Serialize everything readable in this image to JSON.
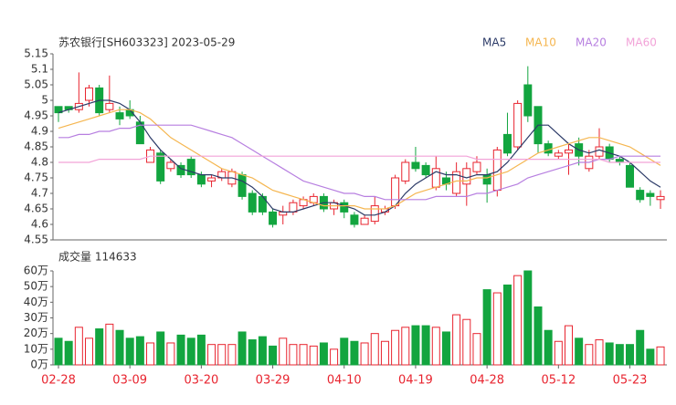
{
  "chart_data": [
    {
      "type": "candlestick",
      "title": "苏农银行[SH603323] 2023-05-29",
      "up_color": "#e8242f",
      "down_color": "#12a53f",
      "open": [
        4.98,
        4.98,
        4.97,
        5.0,
        5.04,
        4.97,
        4.96,
        4.97,
        4.93,
        4.8,
        4.83,
        4.78,
        4.79,
        4.81,
        4.76,
        4.74,
        4.75,
        4.73,
        4.76,
        4.7,
        4.69,
        4.64,
        4.63,
        4.64,
        4.66,
        4.67,
        4.69,
        4.65,
        4.67,
        4.63,
        4.6,
        4.61,
        4.64,
        4.66,
        4.74,
        4.8,
        4.79,
        4.72,
        4.75,
        4.7,
        4.73,
        4.77,
        4.76,
        4.71,
        4.89,
        4.85,
        5.05,
        4.98,
        4.86,
        4.82,
        4.83,
        4.86,
        4.78,
        4.82,
        4.85,
        4.81,
        4.79,
        4.71,
        4.7,
        4.68
      ],
      "high": [
        4.98,
        4.98,
        5.09,
        5.05,
        5.05,
        5.08,
        4.98,
        5.0,
        4.95,
        4.85,
        4.84,
        4.81,
        4.8,
        4.82,
        4.77,
        4.76,
        4.78,
        4.78,
        4.77,
        4.71,
        4.7,
        4.65,
        4.66,
        4.68,
        4.69,
        4.7,
        4.7,
        4.68,
        4.68,
        4.64,
        4.63,
        4.69,
        4.66,
        4.76,
        4.81,
        4.85,
        4.8,
        4.82,
        4.77,
        4.8,
        4.8,
        4.82,
        4.78,
        4.85,
        4.96,
        5.0,
        5.11,
        4.98,
        4.87,
        4.84,
        4.86,
        4.88,
        4.84,
        4.91,
        4.86,
        4.82,
        4.8,
        4.72,
        4.71,
        4.71
      ],
      "low": [
        4.93,
        4.96,
        4.96,
        4.98,
        4.95,
        4.96,
        4.92,
        4.94,
        4.86,
        4.8,
        4.73,
        4.77,
        4.75,
        4.75,
        4.72,
        4.72,
        4.74,
        4.72,
        4.68,
        4.63,
        4.63,
        4.59,
        4.6,
        4.63,
        4.65,
        4.66,
        4.64,
        4.63,
        4.62,
        4.59,
        4.6,
        4.6,
        4.63,
        4.65,
        4.73,
        4.77,
        4.75,
        4.71,
        4.71,
        4.69,
        4.66,
        4.76,
        4.67,
        4.69,
        4.82,
        4.84,
        4.93,
        4.83,
        4.82,
        4.81,
        4.76,
        4.79,
        4.77,
        4.81,
        4.8,
        4.79,
        4.72,
        4.67,
        4.66,
        4.65
      ],
      "close": [
        4.96,
        4.97,
        4.99,
        5.04,
        4.96,
        4.99,
        4.94,
        4.95,
        4.86,
        4.84,
        4.74,
        4.8,
        4.76,
        4.76,
        4.73,
        4.75,
        4.77,
        4.77,
        4.69,
        4.64,
        4.64,
        4.6,
        4.64,
        4.67,
        4.68,
        4.69,
        4.65,
        4.67,
        4.64,
        4.6,
        4.62,
        4.66,
        4.65,
        4.75,
        4.8,
        4.78,
        4.76,
        4.78,
        4.73,
        4.77,
        4.78,
        4.8,
        4.73,
        4.84,
        4.83,
        4.99,
        4.95,
        4.86,
        4.83,
        4.83,
        4.84,
        4.82,
        4.82,
        4.85,
        4.81,
        4.8,
        4.72,
        4.68,
        4.69,
        4.69
      ],
      "series": [
        {
          "name": "MA5",
          "color": "#2b3a67",
          "values": [
            4.96,
            4.97,
            4.98,
            4.99,
            5.0,
            5.0,
            4.99,
            4.97,
            4.93,
            4.88,
            4.84,
            4.81,
            4.78,
            4.77,
            4.76,
            4.76,
            4.75,
            4.75,
            4.74,
            4.72,
            4.69,
            4.65,
            4.64,
            4.64,
            4.65,
            4.66,
            4.67,
            4.67,
            4.66,
            4.65,
            4.63,
            4.63,
            4.64,
            4.66,
            4.7,
            4.73,
            4.75,
            4.77,
            4.76,
            4.76,
            4.75,
            4.76,
            4.76,
            4.77,
            4.8,
            4.84,
            4.88,
            4.92,
            4.92,
            4.89,
            4.86,
            4.84,
            4.83,
            4.84,
            4.83,
            4.82,
            4.8,
            4.77,
            4.74,
            4.72
          ]
        },
        {
          "name": "MA10",
          "color": "#f5b650",
          "values": [
            4.91,
            4.92,
            4.93,
            4.94,
            4.95,
            4.96,
            4.97,
            4.97,
            4.96,
            4.94,
            4.91,
            4.88,
            4.86,
            4.84,
            4.82,
            4.8,
            4.78,
            4.77,
            4.76,
            4.75,
            4.73,
            4.71,
            4.7,
            4.69,
            4.68,
            4.67,
            4.66,
            4.66,
            4.66,
            4.66,
            4.65,
            4.65,
            4.65,
            4.66,
            4.68,
            4.7,
            4.71,
            4.72,
            4.73,
            4.74,
            4.74,
            4.75,
            4.75,
            4.76,
            4.77,
            4.79,
            4.81,
            4.83,
            4.84,
            4.85,
            4.86,
            4.87,
            4.88,
            4.88,
            4.87,
            4.86,
            4.85,
            4.83,
            4.81,
            4.79
          ]
        },
        {
          "name": "MA20",
          "color": "#b77fe0",
          "values": [
            4.88,
            4.88,
            4.89,
            4.89,
            4.9,
            4.9,
            4.91,
            4.91,
            4.92,
            4.92,
            4.92,
            4.92,
            4.92,
            4.92,
            4.91,
            4.9,
            4.89,
            4.88,
            4.86,
            4.84,
            4.82,
            4.8,
            4.78,
            4.76,
            4.74,
            4.73,
            4.72,
            4.71,
            4.7,
            4.7,
            4.69,
            4.69,
            4.68,
            4.68,
            4.68,
            4.68,
            4.68,
            4.69,
            4.69,
            4.69,
            4.69,
            4.7,
            4.7,
            4.71,
            4.72,
            4.73,
            4.75,
            4.76,
            4.77,
            4.78,
            4.79,
            4.8,
            4.8,
            4.81,
            4.81,
            4.82,
            4.82,
            4.82,
            4.82,
            4.82
          ]
        },
        {
          "name": "MA60",
          "color": "#f2a3d8",
          "values": [
            4.8,
            4.8,
            4.8,
            4.8,
            4.81,
            4.81,
            4.81,
            4.81,
            4.81,
            4.82,
            4.82,
            4.82,
            4.82,
            4.82,
            4.82,
            4.82,
            4.82,
            4.82,
            4.82,
            4.82,
            4.82,
            4.82,
            4.82,
            4.82,
            4.82,
            4.82,
            4.82,
            4.82,
            4.82,
            4.82,
            4.82,
            4.82,
            4.82,
            4.82,
            4.82,
            4.82,
            4.82,
            4.82,
            4.82,
            4.82,
            4.82,
            4.81,
            4.81,
            4.81,
            4.81,
            4.81,
            4.81,
            4.81,
            4.81,
            4.81,
            4.81,
            4.81,
            4.81,
            4.81,
            4.8,
            4.8,
            4.8,
            4.8,
            4.8,
            4.8
          ]
        }
      ],
      "ylim": [
        4.55,
        5.15
      ],
      "yticks": [
        4.55,
        4.6,
        4.65,
        4.7,
        4.75,
        4.8,
        4.85,
        4.9,
        4.95,
        5,
        5.05,
        5.1,
        5.15
      ]
    },
    {
      "type": "bar",
      "title": "成交量 114633",
      "categories": [
        "02-28",
        null,
        null,
        null,
        null,
        null,
        null,
        "03-09",
        null,
        null,
        null,
        null,
        null,
        null,
        "03-20",
        null,
        null,
        null,
        null,
        null,
        null,
        "03-29",
        null,
        null,
        null,
        null,
        null,
        null,
        "04-10",
        null,
        null,
        null,
        null,
        null,
        null,
        "04-19",
        null,
        null,
        null,
        null,
        null,
        null,
        "04-28",
        null,
        null,
        null,
        null,
        null,
        null,
        "05-12",
        null,
        null,
        null,
        null,
        null,
        null,
        "05-23",
        null,
        null,
        null
      ],
      "values": [
        17,
        15,
        24,
        17,
        23,
        26,
        22,
        17,
        18,
        14,
        21,
        14,
        19,
        17,
        19,
        13,
        13,
        13,
        21,
        16,
        18,
        12,
        17,
        13,
        13,
        12,
        14,
        10,
        17,
        15,
        14,
        20,
        15,
        22,
        24,
        25,
        25,
        24,
        21,
        32,
        29,
        20,
        48,
        46,
        51,
        57,
        60,
        37,
        22,
        15,
        25,
        17,
        13,
        16,
        14,
        13,
        13,
        22,
        10,
        11.46
      ],
      "ylim": [
        0,
        60
      ],
      "yticks": [
        {
          "value": 0,
          "label": "0万"
        },
        {
          "value": 10,
          "label": "10万"
        },
        {
          "value": 20,
          "label": "20万"
        },
        {
          "value": 30,
          "label": "30万"
        },
        {
          "value": 40,
          "label": "40万"
        },
        {
          "value": 50,
          "label": "50万"
        },
        {
          "value": 60,
          "label": "60万"
        }
      ]
    }
  ]
}
